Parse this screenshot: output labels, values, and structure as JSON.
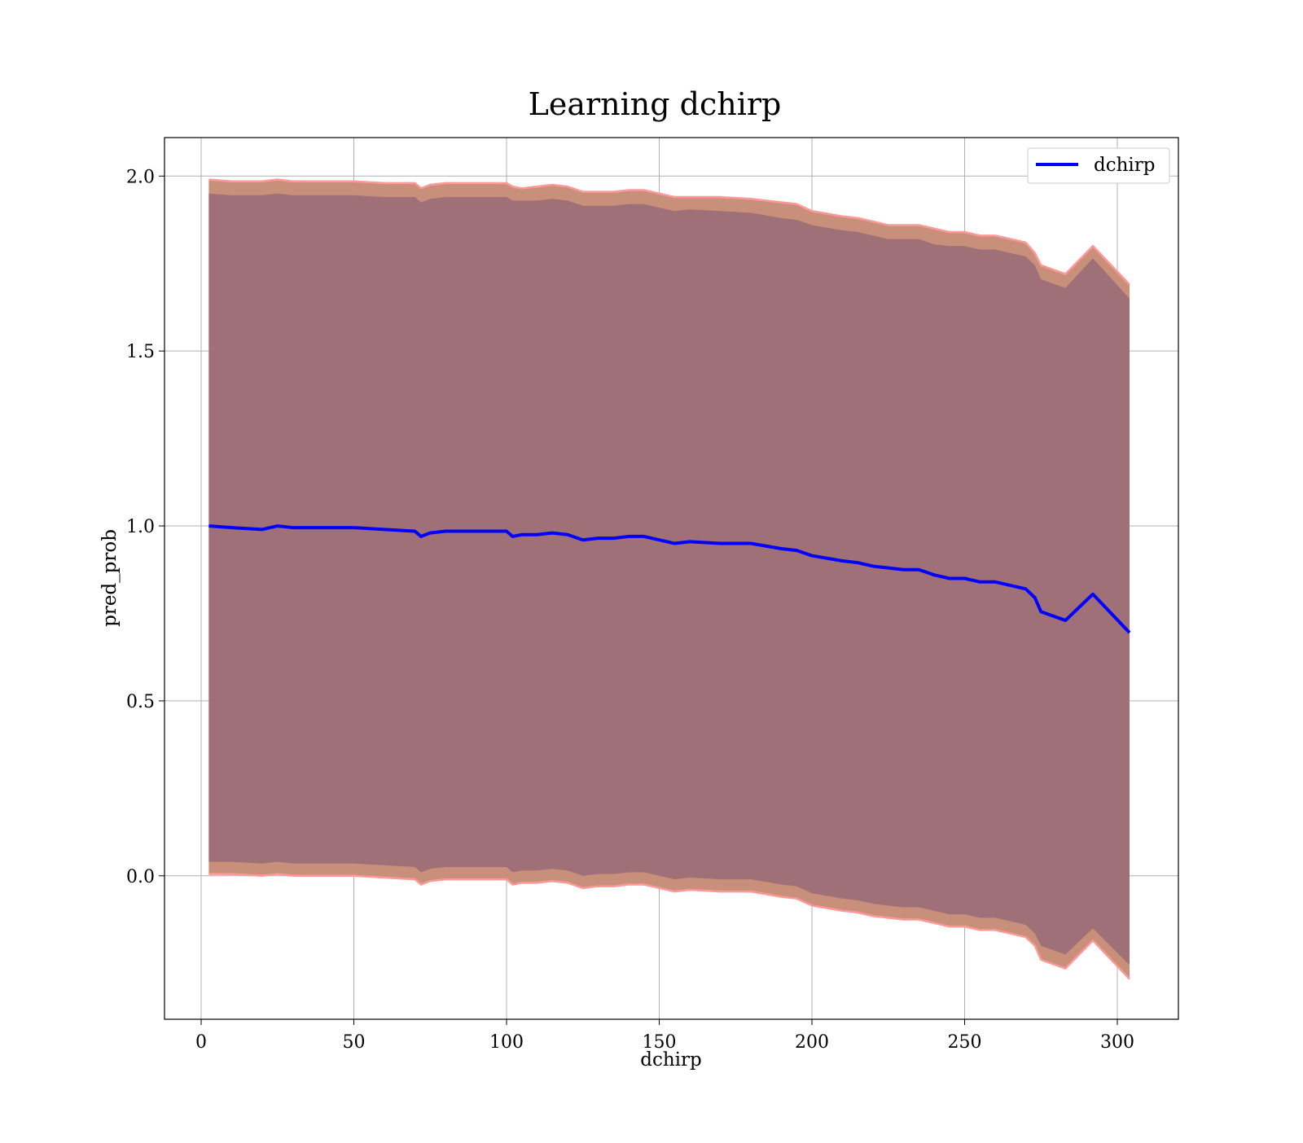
{
  "chart_data": {
    "type": "line",
    "title": "Learning dchirp",
    "xlabel": "dchirp",
    "ylabel": "pred_prob",
    "xlim": [
      -12,
      320
    ],
    "ylim": [
      -0.41,
      2.11
    ],
    "xticks": [
      0,
      50,
      100,
      150,
      200,
      250,
      300
    ],
    "yticks": [
      0.0,
      0.5,
      1.0,
      1.5,
      2.0
    ],
    "xtick_labels": [
      "0",
      "50",
      "100",
      "150",
      "200",
      "250",
      "300"
    ],
    "ytick_labels": [
      "0.0",
      "0.5",
      "1.0",
      "1.5",
      "2.0"
    ],
    "grid": true,
    "legend_position": "top-right",
    "colors": {
      "line": "#0000ff",
      "outer_band": "#c8907a",
      "outer_band_edge": "#ff9999",
      "inner_band": "#a07078"
    },
    "series": [
      {
        "name": "dchirp",
        "x": [
          2.5,
          10,
          20,
          25,
          30,
          40,
          50,
          60,
          70,
          72,
          75,
          80,
          90,
          100,
          102,
          105,
          110,
          115,
          120,
          125,
          130,
          135,
          140,
          145,
          150,
          155,
          160,
          170,
          180,
          190,
          195,
          200,
          210,
          215,
          220,
          225,
          230,
          235,
          240,
          245,
          250,
          255,
          260,
          265,
          270,
          273,
          275,
          283,
          292,
          304
        ],
        "y": [
          1.0,
          0.995,
          0.99,
          1.0,
          0.995,
          0.995,
          0.995,
          0.99,
          0.985,
          0.97,
          0.98,
          0.985,
          0.985,
          0.985,
          0.97,
          0.975,
          0.975,
          0.98,
          0.975,
          0.96,
          0.965,
          0.965,
          0.97,
          0.97,
          0.96,
          0.95,
          0.955,
          0.95,
          0.95,
          0.935,
          0.93,
          0.915,
          0.9,
          0.895,
          0.885,
          0.88,
          0.875,
          0.875,
          0.86,
          0.85,
          0.85,
          0.84,
          0.84,
          0.83,
          0.82,
          0.795,
          0.755,
          0.73,
          0.805,
          0.695
        ]
      }
    ],
    "band_outer_upper": [
      1.99,
      1.985,
      1.985,
      1.99,
      1.985,
      1.985,
      1.985,
      1.98,
      1.98,
      1.965,
      1.975,
      1.98,
      1.98,
      1.98,
      1.97,
      1.965,
      1.97,
      1.975,
      1.97,
      1.955,
      1.955,
      1.955,
      1.96,
      1.96,
      1.95,
      1.94,
      1.94,
      1.94,
      1.935,
      1.925,
      1.92,
      1.9,
      1.885,
      1.88,
      1.87,
      1.86,
      1.86,
      1.86,
      1.85,
      1.84,
      1.84,
      1.83,
      1.83,
      1.82,
      1.81,
      1.78,
      1.745,
      1.72,
      1.8,
      1.69
    ],
    "band_inner_upper": [
      1.95,
      1.945,
      1.945,
      1.95,
      1.945,
      1.945,
      1.945,
      1.94,
      1.94,
      1.925,
      1.935,
      1.94,
      1.94,
      1.94,
      1.93,
      1.93,
      1.93,
      1.935,
      1.93,
      1.915,
      1.915,
      1.915,
      1.92,
      1.92,
      1.91,
      1.9,
      1.905,
      1.9,
      1.895,
      1.88,
      1.875,
      1.86,
      1.845,
      1.84,
      1.83,
      1.82,
      1.82,
      1.82,
      1.805,
      1.8,
      1.8,
      1.79,
      1.79,
      1.78,
      1.77,
      1.745,
      1.705,
      1.68,
      1.765,
      1.65
    ],
    "band_inner_lower": [
      0.04,
      0.04,
      0.035,
      0.04,
      0.035,
      0.035,
      0.035,
      0.03,
      0.025,
      0.01,
      0.02,
      0.025,
      0.025,
      0.025,
      0.01,
      0.015,
      0.015,
      0.02,
      0.015,
      0.0,
      0.005,
      0.005,
      0.01,
      0.01,
      0.0,
      -0.01,
      -0.005,
      -0.01,
      -0.01,
      -0.025,
      -0.03,
      -0.05,
      -0.065,
      -0.07,
      -0.08,
      -0.085,
      -0.09,
      -0.09,
      -0.1,
      -0.11,
      -0.11,
      -0.12,
      -0.12,
      -0.13,
      -0.14,
      -0.165,
      -0.2,
      -0.225,
      -0.15,
      -0.255
    ],
    "band_outer_lower": [
      0.005,
      0.005,
      0.0,
      0.005,
      0.0,
      0.0,
      0.0,
      -0.005,
      -0.01,
      -0.025,
      -0.015,
      -0.01,
      -0.01,
      -0.01,
      -0.025,
      -0.02,
      -0.02,
      -0.015,
      -0.02,
      -0.035,
      -0.03,
      -0.03,
      -0.025,
      -0.025,
      -0.035,
      -0.045,
      -0.04,
      -0.045,
      -0.045,
      -0.06,
      -0.065,
      -0.085,
      -0.1,
      -0.105,
      -0.115,
      -0.12,
      -0.125,
      -0.125,
      -0.135,
      -0.145,
      -0.145,
      -0.155,
      -0.155,
      -0.165,
      -0.175,
      -0.2,
      -0.24,
      -0.265,
      -0.185,
      -0.295
    ]
  }
}
